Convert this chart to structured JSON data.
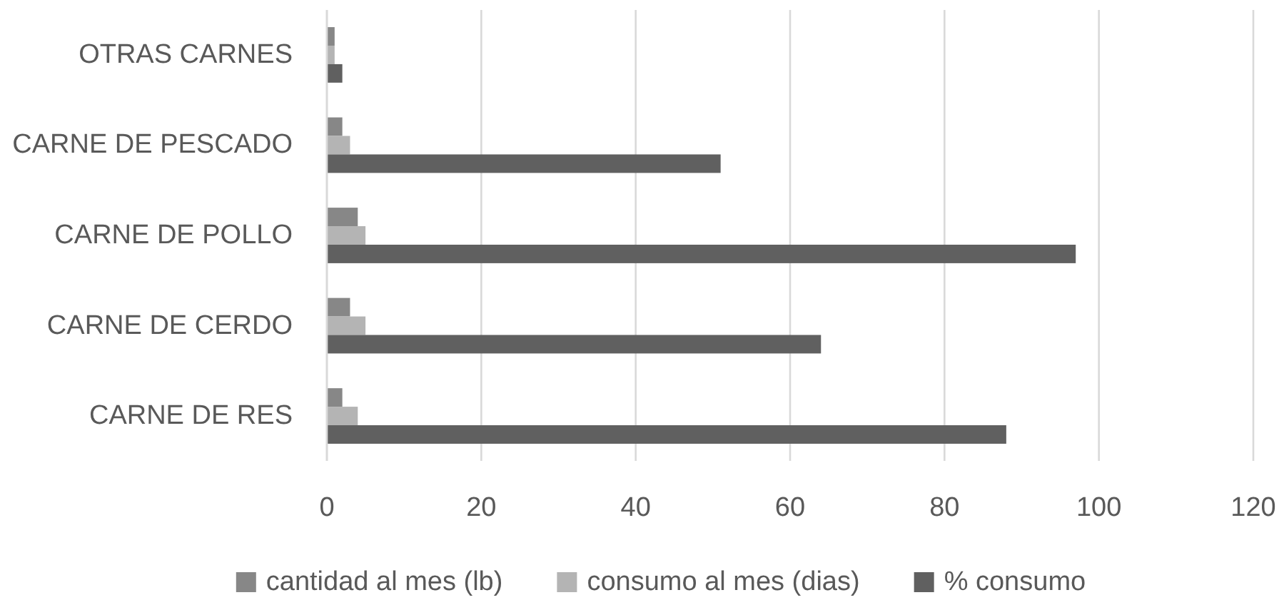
{
  "chart_data": {
    "type": "bar",
    "orientation": "horizontal",
    "categories": [
      "OTRAS CARNES",
      "CARNE DE PESCADO",
      "CARNE DE POLLO",
      "CARNE DE CERDO",
      "CARNE DE RES"
    ],
    "series": [
      {
        "name": "cantidad al mes (lb)",
        "color": "#878787",
        "values": [
          1,
          2,
          4,
          3,
          2
        ]
      },
      {
        "name": "consumo al mes (dias)",
        "color": "#b4b4b4",
        "values": [
          1,
          3,
          5,
          5,
          4
        ]
      },
      {
        "name": "% consumo",
        "color": "#606060",
        "values": [
          2,
          51,
          97,
          64,
          88
        ]
      }
    ],
    "xlim": [
      0,
      120
    ],
    "xticks": [
      0,
      20,
      40,
      60,
      80,
      100,
      120
    ],
    "grid": "x",
    "legend": "bottom"
  }
}
